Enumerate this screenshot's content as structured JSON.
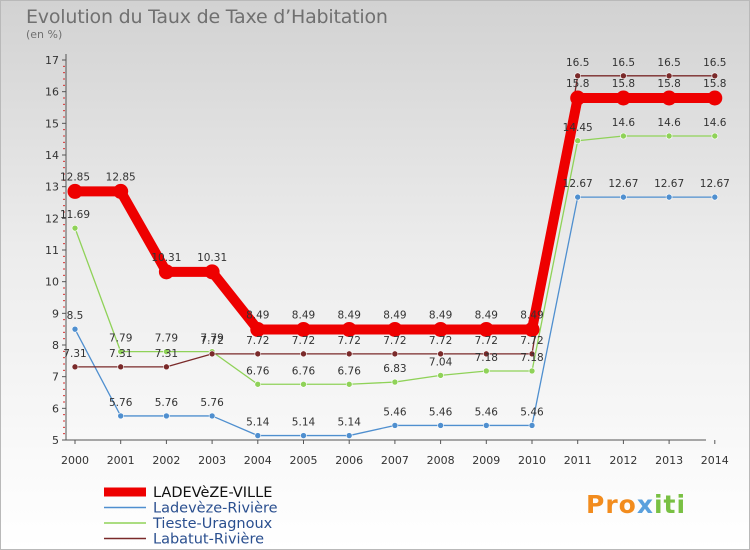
{
  "header": {
    "title": "Evolution du Taux de Taxe d’Habitation",
    "unit": "(en %)"
  },
  "logo": {
    "part1": "Pro",
    "part2": "x",
    "part3": "iti"
  },
  "chart_data": {
    "type": "line",
    "title": "Evolution du Taux de Taxe d’Habitation",
    "ylabel": "(en %)",
    "xlabel": "",
    "x": [
      2000,
      2001,
      2002,
      2003,
      2004,
      2005,
      2006,
      2007,
      2008,
      2009,
      2010,
      2011,
      2012,
      2013,
      2014
    ],
    "ylim": [
      5,
      17
    ],
    "yticks": [
      5,
      6,
      7,
      8,
      9,
      10,
      11,
      12,
      13,
      14,
      15,
      16,
      17
    ],
    "grid": false,
    "legend": "bottom-left",
    "series": [
      {
        "name": "Ladevèze-Rivière",
        "color": "#4f8fcf",
        "values": [
          8.5,
          5.76,
          5.76,
          5.76,
          5.14,
          5.14,
          5.14,
          5.46,
          5.46,
          5.46,
          5.46,
          12.67,
          12.67,
          12.67,
          12.67
        ]
      },
      {
        "name": "Tieste-Uragnoux",
        "color": "#8fd258",
        "values": [
          11.69,
          7.79,
          7.79,
          7.79,
          6.76,
          6.76,
          6.76,
          6.83,
          7.04,
          7.18,
          7.18,
          14.45,
          14.6,
          14.6,
          14.6
        ]
      },
      {
        "name": "Labatut-Rivière",
        "color": "#7a2a2a",
        "values": [
          7.31,
          7.31,
          7.31,
          7.72,
          7.72,
          7.72,
          7.72,
          7.72,
          7.72,
          7.72,
          7.72,
          16.5,
          16.5,
          16.5,
          16.5
        ]
      },
      {
        "name": "LADEVèZE-VILLE",
        "color": "#ee0000",
        "bold": true,
        "values": [
          12.85,
          12.85,
          10.31,
          10.31,
          8.49,
          8.49,
          8.49,
          8.49,
          8.49,
          8.49,
          8.49,
          15.8,
          15.8,
          15.8,
          15.8
        ]
      }
    ],
    "legend_order": [
      "LADEVèZE-VILLE",
      "Ladevèze-Rivière",
      "Tieste-Uragnoux",
      "Labatut-Rivière"
    ]
  }
}
